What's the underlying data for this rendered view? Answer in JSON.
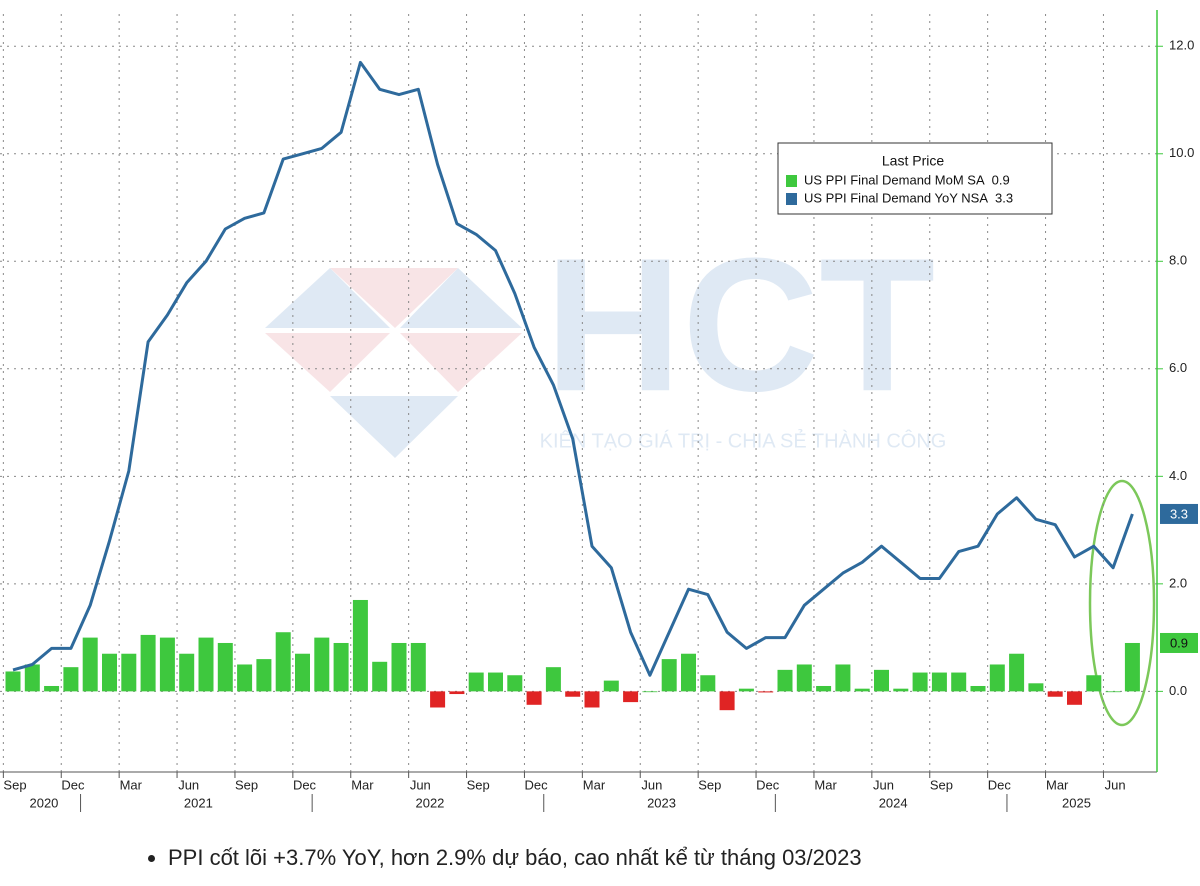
{
  "chart_data": {
    "type": "bar-line",
    "categories": [
      "Sep",
      null,
      null,
      "Dec",
      null,
      null,
      "Mar",
      null,
      null,
      "Jun",
      null,
      null,
      "Sep",
      null,
      null,
      "Dec",
      null,
      null,
      "Mar",
      null,
      null,
      "Jun",
      null,
      null,
      "Sep",
      null,
      null,
      "Dec",
      null,
      null,
      "Mar",
      null,
      null,
      "Jun",
      null,
      null,
      "Sep",
      null,
      null,
      "Dec",
      null,
      null,
      "Mar",
      null,
      null,
      "Jun",
      null,
      null,
      "Sep",
      null,
      null,
      "Dec",
      null,
      null,
      "Mar",
      null,
      null,
      "Jun",
      null
    ],
    "year_labels": [
      "2020",
      "2021",
      "2022",
      "2023",
      "2024",
      "2025"
    ],
    "series": [
      {
        "name": "US PPI Final Demand MoM SA",
        "type": "bar",
        "color": "#3ec83e",
        "negative_color": "#e02424",
        "values": [
          0.37,
          0.5,
          0.1,
          0.45,
          1.0,
          0.7,
          0.7,
          1.05,
          1.0,
          0.7,
          1.0,
          0.9,
          0.5,
          0.6,
          1.1,
          0.7,
          1.0,
          0.9,
          1.7,
          0.55,
          0.9,
          0.9,
          -0.3,
          -0.05,
          0.35,
          0.35,
          0.3,
          -0.25,
          0.45,
          -0.1,
          -0.3,
          0.2,
          -0.2,
          0.0,
          0.6,
          0.7,
          0.3,
          -0.35,
          0.05,
          -0.02,
          0.4,
          0.5,
          0.1,
          0.5,
          0.05,
          0.4,
          0.05,
          0.35,
          0.35,
          0.35,
          0.1,
          0.5,
          0.7,
          0.15,
          -0.1,
          -0.25,
          0.3,
          0.0,
          0.9
        ]
      },
      {
        "name": "US PPI Final Demand YoY NSA",
        "type": "line",
        "color": "#2e6a9c",
        "values": [
          0.4,
          0.5,
          0.8,
          0.8,
          1.6,
          2.8,
          4.1,
          6.5,
          7.0,
          7.6,
          8.0,
          8.6,
          8.8,
          8.9,
          9.9,
          10.0,
          10.1,
          10.4,
          11.7,
          11.2,
          11.1,
          11.2,
          9.8,
          8.7,
          8.5,
          8.2,
          7.4,
          6.4,
          5.7,
          4.7,
          2.7,
          2.3,
          1.1,
          0.3,
          1.1,
          1.9,
          1.8,
          1.1,
          0.8,
          1.0,
          1.0,
          1.6,
          1.9,
          2.2,
          2.4,
          2.7,
          2.4,
          2.1,
          2.1,
          2.6,
          2.7,
          3.3,
          3.6,
          3.2,
          3.1,
          2.5,
          2.7,
          2.3,
          3.3
        ]
      }
    ],
    "ylim": [
      -1.5,
      12.6
    ],
    "yticks": [
      {
        "value": 0,
        "label": "0.0"
      },
      {
        "value": 2,
        "label": "2.0"
      },
      {
        "value": 4,
        "label": "4.0"
      },
      {
        "value": 6,
        "label": "6.0"
      },
      {
        "value": 8,
        "label": "8.0"
      },
      {
        "value": 10,
        "label": "10.0"
      },
      {
        "value": 12,
        "label": "12.0"
      }
    ],
    "grid": true,
    "legend": {
      "title": "Last Price",
      "position": "upper-right"
    },
    "axis_color": "#3ec83e"
  },
  "watermark": {
    "logo": "HCT",
    "tagline": "KIẾN TẠO GIÁ TRỊ - CHIA SẺ THÀNH CÔNG"
  },
  "caption": "PPI cốt lõi +3.7% YoY, hơn 2.9% dự báo, cao nhất kể từ tháng 03/2023"
}
